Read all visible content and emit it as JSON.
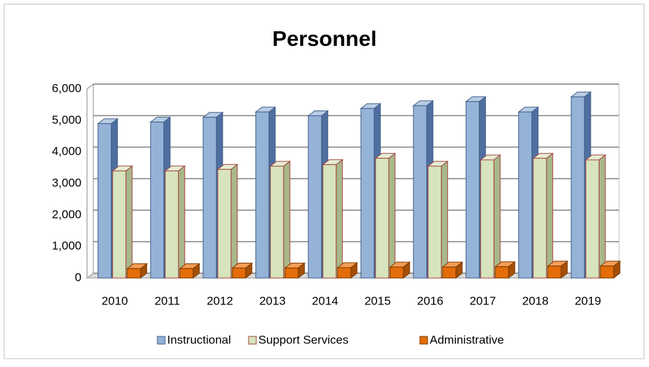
{
  "chart_data": {
    "type": "bar3d",
    "title": "Personnel",
    "categories": [
      "2010",
      "2011",
      "2012",
      "2013",
      "2014",
      "2015",
      "2016",
      "2017",
      "2018",
      "2019"
    ],
    "series": [
      {
        "name": "Instructional",
        "color": "#95b3d7",
        "values": [
          4900,
          4950,
          5100,
          5270,
          5150,
          5380,
          5470,
          5600,
          5270,
          5750
        ]
      },
      {
        "name": "Support Services",
        "color": "#d7e4bd",
        "values": [
          3400,
          3400,
          3450,
          3550,
          3600,
          3800,
          3550,
          3750,
          3800,
          3750
        ]
      },
      {
        "name": "Administrative",
        "color": "#e46c0a",
        "values": [
          300,
          300,
          320,
          320,
          330,
          350,
          350,
          360,
          380,
          380
        ]
      }
    ],
    "ylim": [
      0,
      6000
    ],
    "yticks": [
      0,
      {
        "value": 1000,
        "label": "1,000"
      },
      {
        "value": 2000,
        "label": "2,000"
      },
      {
        "value": 3000,
        "label": "3,000"
      },
      {
        "value": 4000,
        "label": "4,000"
      },
      {
        "value": 5000,
        "label": "5,000"
      },
      {
        "value": 6000,
        "label": "6,000"
      }
    ],
    "grid": true,
    "legend": "bottom"
  }
}
